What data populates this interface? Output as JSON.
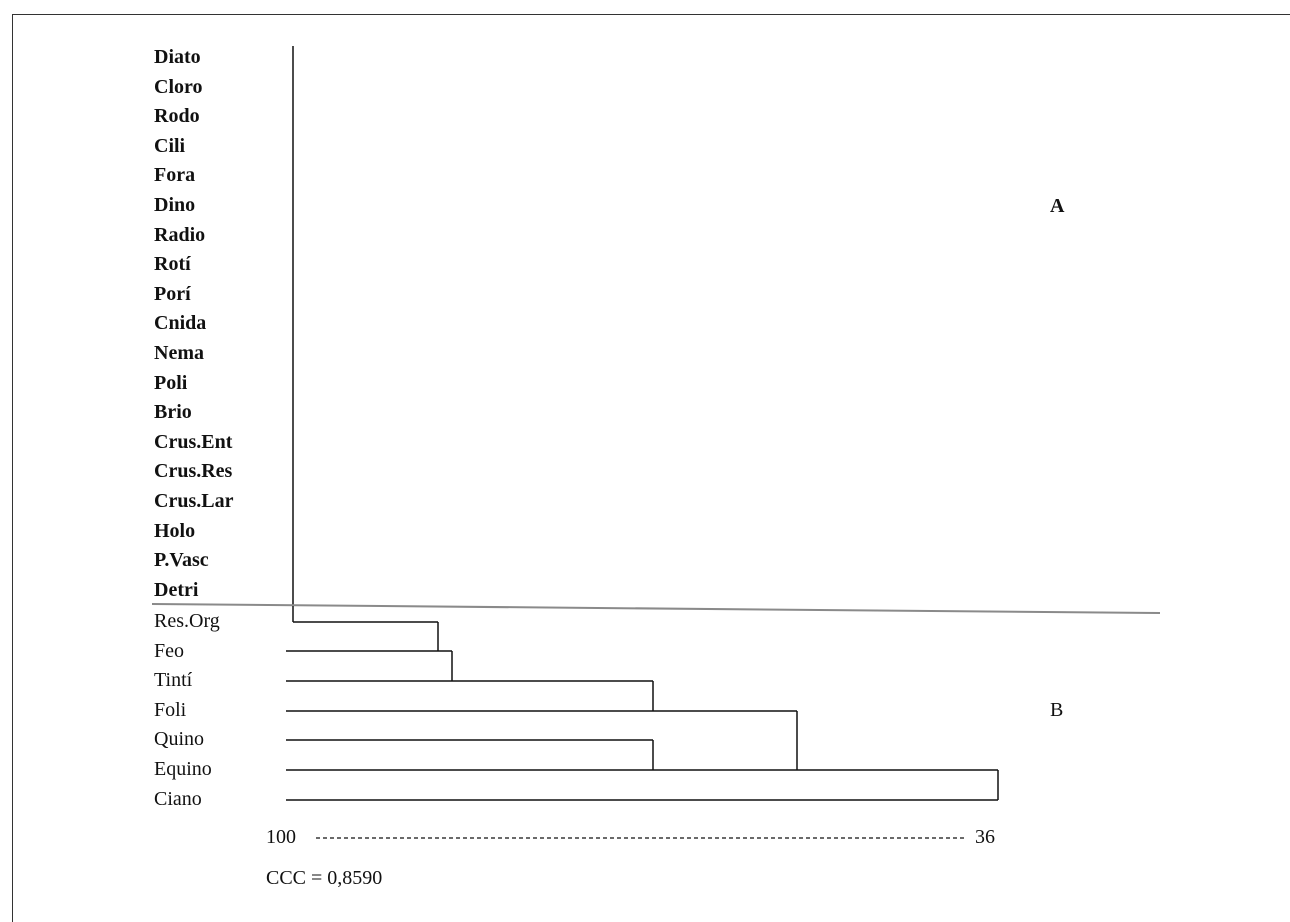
{
  "groups": {
    "a": {
      "label": "A",
      "items": [
        "Diato",
        "Cloro",
        "Rodo",
        "Cili",
        "Fora",
        "Dino",
        "Radio",
        "Rotí",
        "Porí",
        "Cnida",
        "Nema",
        "Poli",
        "Brio",
        "Crus.Ent",
        "Crus.Res",
        "Crus.Lar",
        "Holo",
        "P.Vasc",
        "Detri"
      ]
    },
    "b": {
      "label": "B",
      "items": [
        "Res.Org",
        "Feo",
        "Tintí",
        "Foli",
        "Quino",
        "Equino",
        "Ciano"
      ]
    }
  },
  "scale": {
    "left": "100",
    "right": "36"
  },
  "ccc_label": "CCC = 0,8590",
  "colors": {
    "ink": "#111111",
    "separator": "#8a8a8a"
  }
}
